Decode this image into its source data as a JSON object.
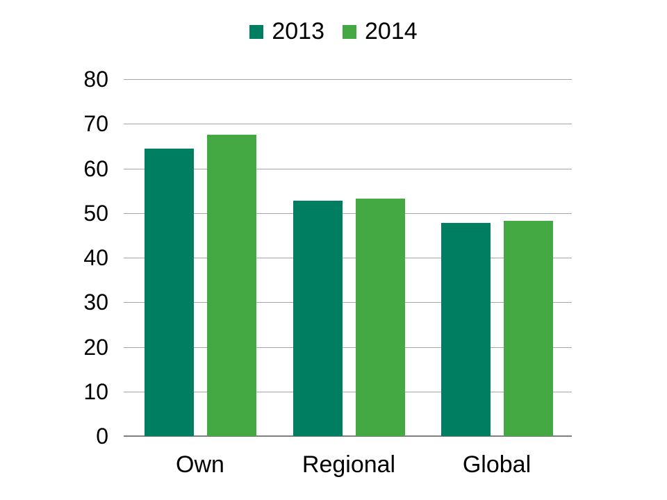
{
  "chart_data": {
    "type": "bar",
    "title": "",
    "categories": [
      "Own",
      "Regional",
      "Global"
    ],
    "series": [
      {
        "name": "2013",
        "color": "#007E62",
        "values": [
          64.5,
          52.8,
          47.8
        ]
      },
      {
        "name": "2014",
        "color": "#44A942",
        "values": [
          67.5,
          53.2,
          48.3
        ]
      }
    ],
    "xlabel": "",
    "ylabel": "",
    "ylim": [
      0,
      80
    ],
    "yticks": [
      0,
      10,
      20,
      30,
      40,
      50,
      60,
      70,
      80
    ],
    "grid": true,
    "legend_position": "top",
    "colors": {
      "gridline": "#A6A6A6",
      "axis_line": "#7F7F7F",
      "text": "#000000",
      "background": "#FFFFFF"
    }
  }
}
